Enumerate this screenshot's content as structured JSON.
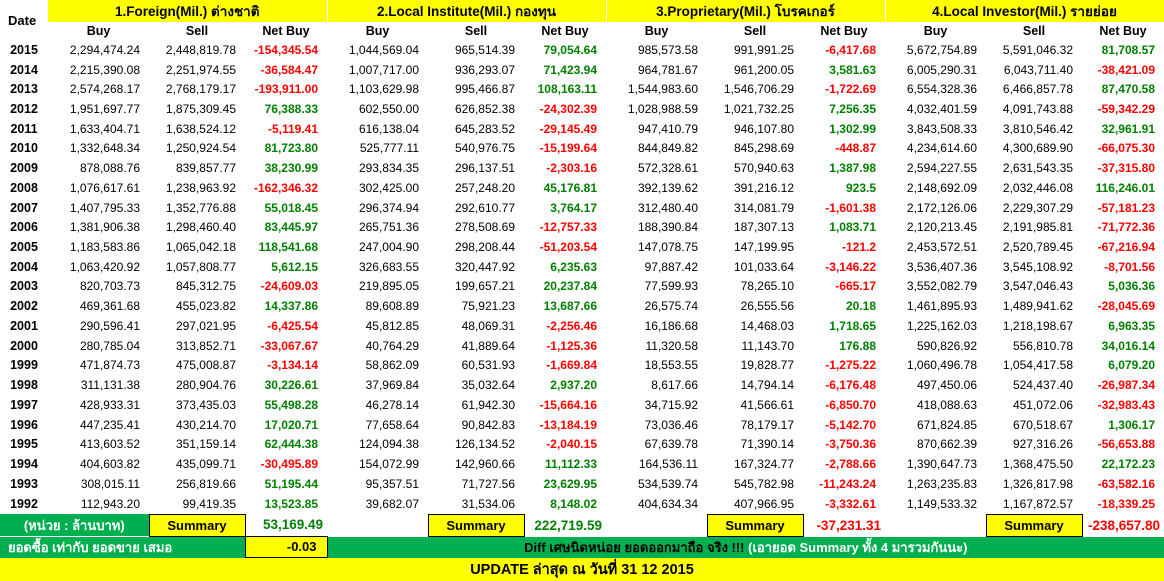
{
  "header": {
    "date_label": "Date",
    "groups": [
      {
        "title": "1.Foreign(Mil.) ต่างชาติ"
      },
      {
        "title": "2.Local Institute(Mil.) กองทุน"
      },
      {
        "title": "3.Proprietary(Mil.) โบรคเกอร์"
      },
      {
        "title": "4.Local Investor(Mil.) รายย่อย"
      }
    ],
    "sub_columns": [
      "Buy",
      "Sell",
      "Net Buy"
    ]
  },
  "rows": [
    {
      "year": "2015",
      "values": [
        "2,294,474.24",
        "2,448,819.78",
        "-154,345.54",
        "1,044,569.04",
        "965,514.39",
        "79,054.64",
        "985,573.58",
        "991,991.25",
        "-6,417.68",
        "5,672,754.89",
        "5,591,046.32",
        "81,708.57"
      ]
    },
    {
      "year": "2014",
      "values": [
        "2,215,390.08",
        "2,251,974.55",
        "-36,584.47",
        "1,007,717.00",
        "936,293.07",
        "71,423.94",
        "964,781.67",
        "961,200.05",
        "3,581.63",
        "6,005,290.31",
        "6,043,711.40",
        "-38,421.09"
      ]
    },
    {
      "year": "2013",
      "values": [
        "2,574,268.17",
        "2,768,179.17",
        "-193,911.00",
        "1,103,629.98",
        "995,466.87",
        "108,163.11",
        "1,544,983.60",
        "1,546,706.29",
        "-1,722.69",
        "6,554,328.36",
        "6,466,857.78",
        "87,470.58"
      ]
    },
    {
      "year": "2012",
      "values": [
        "1,951,697.77",
        "1,875,309.45",
        "76,388.33",
        "602,550.00",
        "626,852.38",
        "-24,302.39",
        "1,028,988.59",
        "1,021,732.25",
        "7,256.35",
        "4,032,401.59",
        "4,091,743.88",
        "-59,342.29"
      ]
    },
    {
      "year": "2011",
      "values": [
        "1,633,404.71",
        "1,638,524.12",
        "-5,119.41",
        "616,138.04",
        "645,283.52",
        "-29,145.49",
        "947,410.79",
        "946,107.80",
        "1,302.99",
        "3,843,508.33",
        "3,810,546.42",
        "32,961.91"
      ]
    },
    {
      "year": "2010",
      "values": [
        "1,332,648.34",
        "1,250,924.54",
        "81,723.80",
        "525,777.11",
        "540,976.75",
        "-15,199.64",
        "844,849.82",
        "845,298.69",
        "-448.87",
        "4,234,614.60",
        "4,300,689.90",
        "-66,075.30"
      ]
    },
    {
      "year": "2009",
      "values": [
        "878,088.76",
        "839,857.77",
        "38,230.99",
        "293,834.35",
        "296,137.51",
        "-2,303.16",
        "572,328.61",
        "570,940.63",
        "1,387.98",
        "2,594,227.55",
        "2,631,543.35",
        "-37,315.80"
      ]
    },
    {
      "year": "2008",
      "values": [
        "1,076,617.61",
        "1,238,963.92",
        "-162,346.32",
        "302,425.00",
        "257,248.20",
        "45,176.81",
        "392,139.62",
        "391,216.12",
        "923.5",
        "2,148,692.09",
        "2,032,446.08",
        "116,246.01"
      ]
    },
    {
      "year": "2007",
      "values": [
        "1,407,795.33",
        "1,352,776.88",
        "55,018.45",
        "296,374.94",
        "292,610.77",
        "3,764.17",
        "312,480.40",
        "314,081.79",
        "-1,601.38",
        "2,172,126.06",
        "2,229,307.29",
        "-57,181.23"
      ]
    },
    {
      "year": "2006",
      "values": [
        "1,381,906.38",
        "1,298,460.40",
        "83,445.97",
        "265,751.36",
        "278,508.69",
        "-12,757.33",
        "188,390.84",
        "187,307.13",
        "1,083.71",
        "2,120,213.45",
        "2,191,985.81",
        "-71,772.36"
      ]
    },
    {
      "year": "2005",
      "values": [
        "1,183,583.86",
        "1,065,042.18",
        "118,541.68",
        "247,004.90",
        "298,208.44",
        "-51,203.54",
        "147,078.75",
        "147,199.95",
        "-121.2",
        "2,453,572.51",
        "2,520,789.45",
        "-67,216.94"
      ]
    },
    {
      "year": "2004",
      "values": [
        "1,063,420.92",
        "1,057,808.77",
        "5,612.15",
        "326,683.55",
        "320,447.92",
        "6,235.63",
        "97,887.42",
        "101,033.64",
        "-3,146.22",
        "3,536,407.36",
        "3,545,108.92",
        "-8,701.56"
      ]
    },
    {
      "year": "2003",
      "values": [
        "820,703.73",
        "845,312.75",
        "-24,609.03",
        "219,895.05",
        "199,657.21",
        "20,237.84",
        "77,599.93",
        "78,265.10",
        "-665.17",
        "3,552,082.79",
        "3,547,046.43",
        "5,036.36"
      ]
    },
    {
      "year": "2002",
      "values": [
        "469,361.68",
        "455,023.82",
        "14,337.86",
        "89,608.89",
        "75,921.23",
        "13,687.66",
        "26,575.74",
        "26,555.56",
        "20.18",
        "1,461,895.93",
        "1,489,941.62",
        "-28,045.69"
      ]
    },
    {
      "year": "2001",
      "values": [
        "290,596.41",
        "297,021.95",
        "-6,425.54",
        "45,812.85",
        "48,069.31",
        "-2,256.46",
        "16,186.68",
        "14,468.03",
        "1,718.65",
        "1,225,162.03",
        "1,218,198.67",
        "6,963.35"
      ]
    },
    {
      "year": "2000",
      "values": [
        "280,785.04",
        "313,852.71",
        "-33,067.67",
        "40,764.29",
        "41,889.64",
        "-1,125.36",
        "11,320.58",
        "11,143.70",
        "176.88",
        "590,826.92",
        "556,810.78",
        "34,016.14"
      ]
    },
    {
      "year": "1999",
      "values": [
        "471,874.73",
        "475,008.87",
        "-3,134.14",
        "58,862.09",
        "60,531.93",
        "-1,669.84",
        "18,553.55",
        "19,828.77",
        "-1,275.22",
        "1,060,496.78",
        "1,054,417.58",
        "6,079.20"
      ]
    },
    {
      "year": "1998",
      "values": [
        "311,131.38",
        "280,904.76",
        "30,226.61",
        "37,969.84",
        "35,032.64",
        "2,937.20",
        "8,617.66",
        "14,794.14",
        "-6,176.48",
        "497,450.06",
        "524,437.40",
        "-26,987.34"
      ]
    },
    {
      "year": "1997",
      "values": [
        "428,933.31",
        "373,435.03",
        "55,498.28",
        "46,278.14",
        "61,942.30",
        "-15,664.16",
        "34,715.92",
        "41,566.61",
        "-6,850.70",
        "418,088.63",
        "451,072.06",
        "-32,983.43"
      ]
    },
    {
      "year": "1996",
      "values": [
        "447,235.41",
        "430,214.70",
        "17,020.71",
        "77,658.64",
        "90,842.83",
        "-13,184.19",
        "73,036.46",
        "78,179.17",
        "-5,142.70",
        "671,824.85",
        "670,518.67",
        "1,306.17"
      ]
    },
    {
      "year": "1995",
      "values": [
        "413,603.52",
        "351,159.14",
        "62,444.38",
        "124,094.38",
        "126,134.52",
        "-2,040.15",
        "67,639.78",
        "71,390.14",
        "-3,750.36",
        "870,662.39",
        "927,316.26",
        "-56,653.88"
      ]
    },
    {
      "year": "1994",
      "values": [
        "404,603.82",
        "435,099.71",
        "-30,495.89",
        "154,072.99",
        "142,960.66",
        "11,112.33",
        "164,536.11",
        "167,324.77",
        "-2,788.66",
        "1,390,647.73",
        "1,368,475.50",
        "22,172.23"
      ]
    },
    {
      "year": "1993",
      "values": [
        "308,015.11",
        "256,819.66",
        "51,195.44",
        "95,357.51",
        "71,727.56",
        "23,629.95",
        "534,539.74",
        "545,782.98",
        "-11,243.24",
        "1,263,235.83",
        "1,326,817.98",
        "-63,582.16"
      ]
    },
    {
      "year": "1992",
      "values": [
        "112,943.20",
        "99,419.35",
        "13,523.85",
        "39,682.07",
        "31,534.06",
        "8,148.02",
        "404,634.34",
        "407,966.95",
        "-3,332.61",
        "1,149,533.32",
        "1,167,872.57",
        "-18,339.25"
      ]
    }
  ],
  "summary": {
    "unit_label": "(หน่วย : ล้านบาท)",
    "summary_label": "Summary",
    "values": [
      "53,169.49",
      "222,719.59",
      "-37,231.31",
      "-238,657.80"
    ]
  },
  "footer": {
    "left_note": "ยอดซื้อ เท่ากับ ยอดขาย เสมอ",
    "diff_value": "-0.03",
    "diff_note_main": "Diff เศษนิดหน่อย ยอดออกมาถือ จริง !!!",
    "diff_note_paren": "(เอายอด Summary ทั้ง 4 มารวมกันนะ)",
    "update_label": "UPDATE ล่าสุด ณ วันที่ 31 12 2015"
  },
  "colors": {
    "header_bg": "#FFFF00",
    "positive_text": "#008000",
    "negative_text": "#FF0000",
    "band_green_bg": "#00B050"
  }
}
